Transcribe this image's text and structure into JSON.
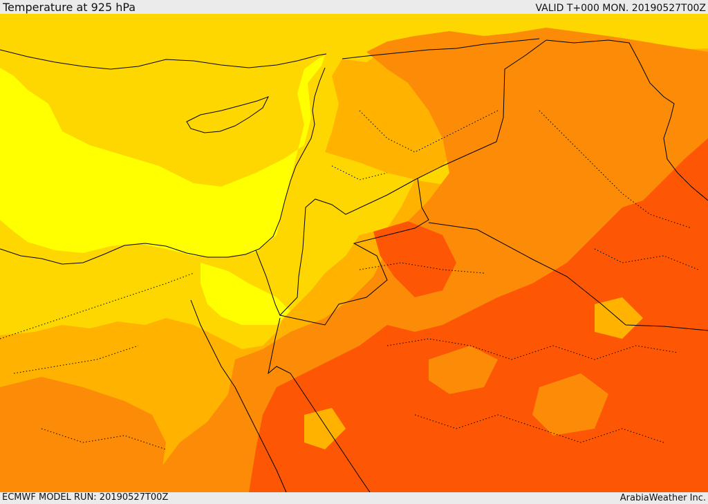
{
  "header": {
    "title": "Temperature at 925 hPa",
    "valid": "VALID T+000 MON. 20190527T00Z"
  },
  "footer": {
    "model_run": "ECMWF MODEL RUN: 20190527T00Z",
    "credit": "ArabiaWeather Inc."
  },
  "map": {
    "field": "Temperature at 925 hPa",
    "colors": {
      "bright_yellow": "#ffff00",
      "gold": "#ffd700",
      "amber": "#ffb300",
      "orange": "#fc8c07",
      "deep_orange": "#fd5604",
      "border": "#000000"
    }
  }
}
